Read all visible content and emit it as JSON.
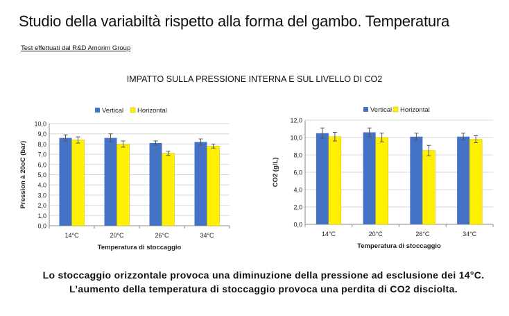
{
  "page": {
    "title": "Studio della variabiltà rispetto alla forma del gambo. Temperatura",
    "source": "Test effettuati dal R&D Amorim Group",
    "subtitle": "IMPATTO SULLA PRESSIONE INTERNA E SUL LIVELLO DI CO2",
    "conclusion_1": "Lo stoccaggio orizzontale provoca una diminuzione della pressione ad esclusione dei 14°C.",
    "conclusion_2": "L’aumento della temperatura di stoccaggio provoca una perdita di CO2 disciolta."
  },
  "colors": {
    "vertical": "#4472C4",
    "horizontal": "#FFEF00",
    "grid": "#d9d9d9",
    "axis": "#888888",
    "error": "#555555"
  },
  "chart_data": [
    {
      "type": "bar",
      "categories": [
        "14°C",
        "20°C",
        "26°C",
        "34°C"
      ],
      "series": [
        {
          "name": "Vertical",
          "values": [
            8.6,
            8.6,
            8.1,
            8.2
          ],
          "errors": [
            0.3,
            0.4,
            0.2,
            0.3
          ]
        },
        {
          "name": "Horizontal",
          "values": [
            8.4,
            8.0,
            7.1,
            7.8
          ],
          "errors": [
            0.3,
            0.3,
            0.2,
            0.2
          ]
        }
      ],
      "xlabel": "Temperatura di stoccaggio",
      "ylabel": "Pression à 20oC (bar)",
      "ylim": [
        0,
        10
      ],
      "yticks": [
        "0,0",
        "1,0",
        "2,0",
        "3,0",
        "4,0",
        "5,0",
        "6,0",
        "7,0",
        "8,0",
        "9,0",
        "10,0"
      ],
      "grid": true,
      "legend": "top"
    },
    {
      "type": "bar",
      "categories": [
        "14°C",
        "20°C",
        "26°C",
        "34°C"
      ],
      "series": [
        {
          "name": "Vertical",
          "values": [
            10.5,
            10.6,
            10.1,
            10.1
          ],
          "errors": [
            0.6,
            0.5,
            0.4,
            0.4
          ]
        },
        {
          "name": "Horizontal",
          "values": [
            10.1,
            10.0,
            8.5,
            9.8
          ],
          "errors": [
            0.5,
            0.5,
            0.6,
            0.4
          ]
        }
      ],
      "xlabel": "Temperatura di stoccaggio",
      "ylabel": "CO2  (g/L)",
      "ylim": [
        0,
        12
      ],
      "yticks": [
        "0,0",
        "2,0",
        "4,0",
        "6,0",
        "8,0",
        "10,0",
        "12,0"
      ],
      "grid": true,
      "legend": "top"
    }
  ]
}
